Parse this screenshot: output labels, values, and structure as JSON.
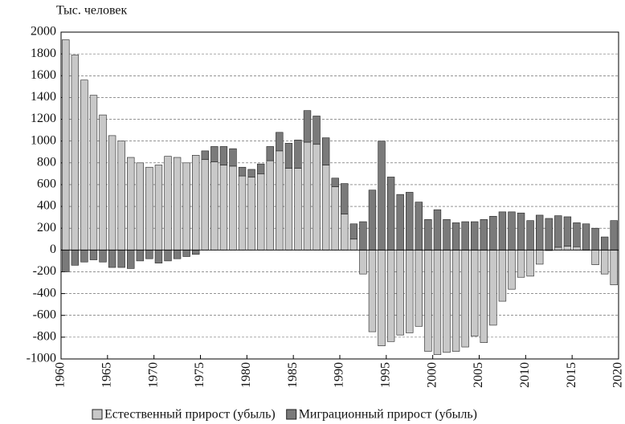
{
  "chart_data": {
    "type": "bar",
    "stacked": true,
    "y_label": "Тыс. человек",
    "x": [
      1960,
      1961,
      1962,
      1963,
      1964,
      1965,
      1966,
      1967,
      1968,
      1969,
      1970,
      1971,
      1972,
      1973,
      1974,
      1975,
      1976,
      1977,
      1978,
      1979,
      1980,
      1981,
      1982,
      1983,
      1984,
      1985,
      1986,
      1987,
      1988,
      1989,
      1990,
      1991,
      1992,
      1993,
      1994,
      1995,
      1996,
      1997,
      1998,
      1999,
      2000,
      2001,
      2002,
      2003,
      2004,
      2005,
      2006,
      2007,
      2008,
      2009,
      2010,
      2011,
      2012,
      2013,
      2014,
      2015,
      2016,
      2017,
      2018,
      2019
    ],
    "series": [
      {
        "name": "Естественный прирост (убыль)",
        "color": "#c8c8c8",
        "values": [
          1930,
          1790,
          1560,
          1420,
          1240,
          1050,
          1000,
          850,
          800,
          760,
          780,
          860,
          850,
          800,
          870,
          830,
          810,
          780,
          770,
          680,
          670,
          700,
          820,
          910,
          750,
          750,
          990,
          970,
          780,
          580,
          330,
          100,
          -220,
          -750,
          -880,
          -840,
          -780,
          -760,
          -700,
          -930,
          -960,
          -940,
          -930,
          -890,
          -790,
          -850,
          -690,
          -470,
          -360,
          -250,
          -240,
          -130,
          -5,
          25,
          35,
          30,
          -2,
          -135,
          -220,
          -320
        ]
      },
      {
        "name": "Миграционный прирост (убыль)",
        "color": "#7a7a7a",
        "values": [
          -200,
          -140,
          -110,
          -90,
          -110,
          -160,
          -160,
          -170,
          -100,
          -80,
          -120,
          -100,
          -80,
          -60,
          -40,
          80,
          140,
          170,
          160,
          80,
          70,
          90,
          130,
          170,
          230,
          260,
          290,
          260,
          250,
          80,
          280,
          140,
          260,
          550,
          1000,
          670,
          510,
          530,
          440,
          280,
          370,
          280,
          250,
          260,
          260,
          280,
          310,
          350,
          350,
          340,
          270,
          320,
          290,
          290,
          270,
          220,
          240,
          200,
          120,
          270
        ]
      }
    ],
    "xlim": [
      1960,
      2020
    ],
    "xticks": [
      1960,
      1965,
      1970,
      1975,
      1980,
      1985,
      1990,
      1995,
      2000,
      2005,
      2010,
      2015,
      2020
    ],
    "ylim": [
      -1000,
      2000
    ],
    "yticks": [
      -1000,
      -800,
      -600,
      -400,
      -200,
      0,
      200,
      400,
      600,
      800,
      1000,
      1200,
      1400,
      1600,
      1800,
      2000
    ],
    "grid": true,
    "legend": "bottom"
  }
}
